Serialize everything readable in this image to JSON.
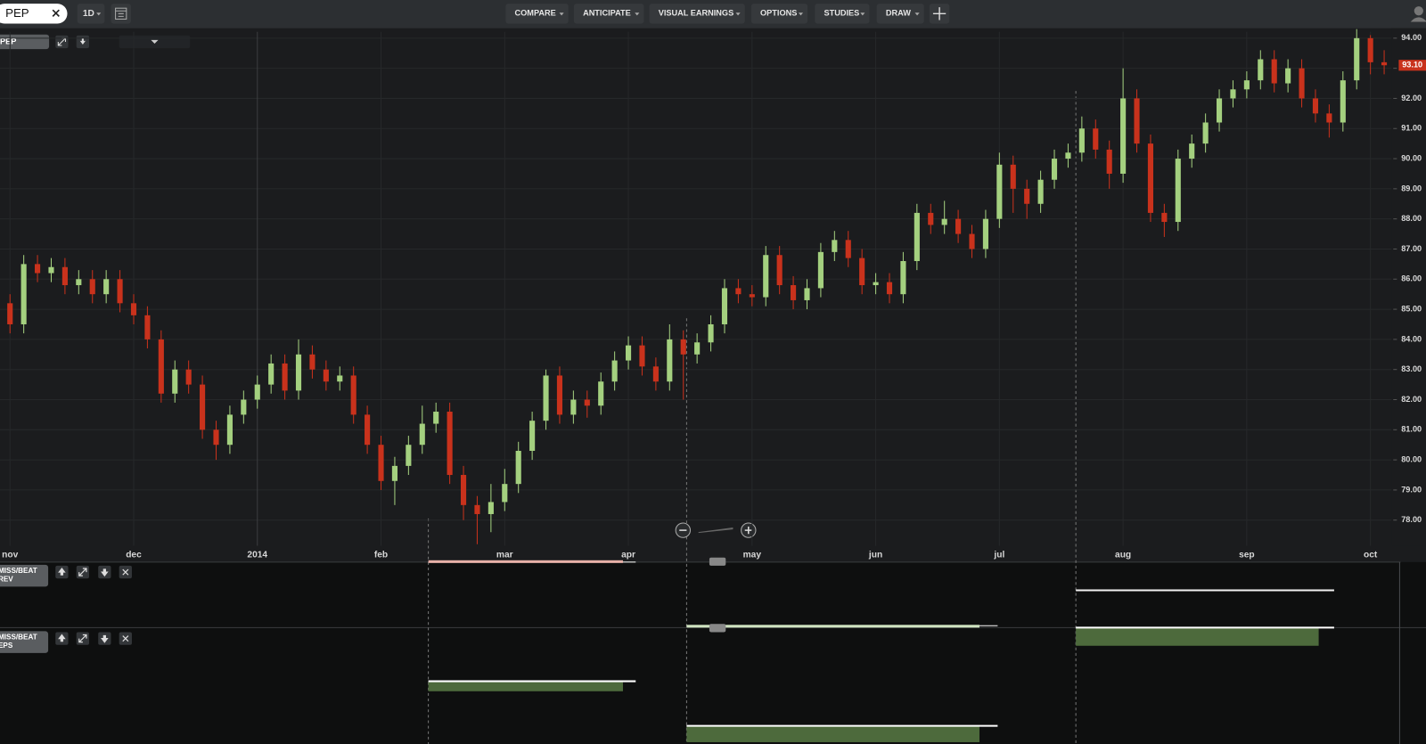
{
  "toolbar": {
    "symbol": "PEP",
    "interval": "1D",
    "menus": [
      "COMPARE",
      "ANTICIPATE",
      "VISUAL EARNINGS",
      "OPTIONS",
      "STUDIES",
      "DRAW"
    ]
  },
  "chart_data": {
    "type": "candlestick",
    "title": "PEP",
    "categories": [
      "nov",
      null,
      null,
      null,
      null,
      null,
      null,
      null,
      null,
      "dec",
      null,
      null,
      null,
      null,
      null,
      null,
      null,
      null,
      "2014",
      null,
      null,
      null,
      null,
      null,
      null,
      null,
      null,
      "feb",
      null,
      null,
      null,
      null,
      null,
      null,
      null,
      null,
      "mar",
      null,
      null,
      null,
      null,
      null,
      null,
      null,
      null,
      "apr",
      null,
      null,
      null,
      null,
      null,
      null,
      null,
      null,
      "may",
      null,
      null,
      null,
      null,
      null,
      null,
      null,
      null,
      "jun",
      null,
      null,
      null,
      null,
      null,
      null,
      null,
      null,
      "jul",
      null,
      null,
      null,
      null,
      null,
      null,
      null,
      null,
      "aug",
      null,
      null,
      null,
      null,
      null,
      null,
      null,
      null,
      "sep",
      null,
      null,
      null,
      null,
      null,
      null,
      null,
      null,
      "oct",
      null
    ],
    "open": [
      85.2,
      84.5,
      86.5,
      86.2,
      86.4,
      85.8,
      86.0,
      85.5,
      86.0,
      85.2,
      84.8,
      84.0,
      82.2,
      83.0,
      82.5,
      81.0,
      80.5,
      81.5,
      82.0,
      82.5,
      83.2,
      82.3,
      83.5,
      83.0,
      82.6,
      82.8,
      81.5,
      80.5,
      79.3,
      79.8,
      80.5,
      81.2,
      81.6,
      79.5,
      78.5,
      78.2,
      78.6,
      79.2,
      80.3,
      81.3,
      82.8,
      81.5,
      82.0,
      81.8,
      82.6,
      83.3,
      83.8,
      83.1,
      82.6,
      84.0,
      83.5,
      83.9,
      84.5,
      85.7,
      85.5,
      85.4,
      86.8,
      85.8,
      85.3,
      85.7,
      86.9,
      87.3,
      86.7,
      85.8,
      85.9,
      85.5,
      86.6,
      88.2,
      87.8,
      88.0,
      87.5,
      87.0,
      88.0,
      89.8,
      89.0,
      88.5,
      89.3,
      90.0,
      90.2,
      91.0,
      90.3,
      89.5,
      92.0,
      90.5,
      88.2,
      87.9,
      90.0,
      90.5,
      91.2,
      92.0,
      92.3,
      92.6,
      93.3,
      92.5,
      93.0,
      92.0,
      91.5,
      91.2,
      92.6,
      94.0,
      93.2
    ],
    "high": [
      85.5,
      86.8,
      86.8,
      86.7,
      86.7,
      86.3,
      86.3,
      86.3,
      86.3,
      85.5,
      85.1,
      84.3,
      83.3,
      83.3,
      82.8,
      81.3,
      81.8,
      82.3,
      82.8,
      83.5,
      83.5,
      84.0,
      83.8,
      83.3,
      83.1,
      83.1,
      81.8,
      80.8,
      80.1,
      80.8,
      81.8,
      81.9,
      81.9,
      79.8,
      78.8,
      79.2,
      79.7,
      80.6,
      81.6,
      83.0,
      83.1,
      82.3,
      82.3,
      82.9,
      83.6,
      84.1,
      84.1,
      83.4,
      84.5,
      84.3,
      84.2,
      84.8,
      86.0,
      86.0,
      85.8,
      87.1,
      87.1,
      86.1,
      86.0,
      87.2,
      87.6,
      87.6,
      87.0,
      86.2,
      86.2,
      86.9,
      88.5,
      88.5,
      88.6,
      88.3,
      87.8,
      88.3,
      90.2,
      90.1,
      89.3,
      89.6,
      90.3,
      90.5,
      91.4,
      91.3,
      90.6,
      93.0,
      92.3,
      90.8,
      88.5,
      90.3,
      90.8,
      91.5,
      92.3,
      92.6,
      92.9,
      93.6,
      93.6,
      93.3,
      93.3,
      92.3,
      91.8,
      92.9,
      94.3,
      94.1,
      93.6
    ],
    "low": [
      84.2,
      84.2,
      85.9,
      85.9,
      85.5,
      85.5,
      85.2,
      85.2,
      84.9,
      84.5,
      83.7,
      81.9,
      81.9,
      82.2,
      80.7,
      80.0,
      80.2,
      81.2,
      81.7,
      82.2,
      82.0,
      82.0,
      82.7,
      82.3,
      82.3,
      81.2,
      80.2,
      79.0,
      78.5,
      79.5,
      80.2,
      80.9,
      79.2,
      78.0,
      77.2,
      77.6,
      78.3,
      78.9,
      80.0,
      81.0,
      81.2,
      81.2,
      81.4,
      81.5,
      82.3,
      83.0,
      82.8,
      82.3,
      82.3,
      82.0,
      83.2,
      83.6,
      84.2,
      85.2,
      85.1,
      85.1,
      85.5,
      85.0,
      85.0,
      85.4,
      86.6,
      86.4,
      85.5,
      85.5,
      85.2,
      85.2,
      86.3,
      87.5,
      87.5,
      87.2,
      86.7,
      86.7,
      87.7,
      88.2,
      88.0,
      88.2,
      89.0,
      89.7,
      89.9,
      90.0,
      89.0,
      89.2,
      90.2,
      87.9,
      87.4,
      87.6,
      89.7,
      90.2,
      90.9,
      91.7,
      92.0,
      92.3,
      92.2,
      92.2,
      91.7,
      91.2,
      90.7,
      90.9,
      92.3,
      92.8,
      92.8
    ],
    "close": [
      84.5,
      86.5,
      86.2,
      86.4,
      85.8,
      86.0,
      85.5,
      86.0,
      85.2,
      84.8,
      84.0,
      82.2,
      83.0,
      82.5,
      81.0,
      80.5,
      81.5,
      82.0,
      82.5,
      83.2,
      82.3,
      83.5,
      83.0,
      82.6,
      82.8,
      81.5,
      80.5,
      79.3,
      79.8,
      80.5,
      81.2,
      81.6,
      79.5,
      78.5,
      78.2,
      78.6,
      79.2,
      80.3,
      81.3,
      82.8,
      81.5,
      82.0,
      81.8,
      82.6,
      83.3,
      83.8,
      83.1,
      82.6,
      84.0,
      83.5,
      83.9,
      84.5,
      85.7,
      85.5,
      85.4,
      86.8,
      85.8,
      85.3,
      85.7,
      86.9,
      87.3,
      86.7,
      85.8,
      85.9,
      85.5,
      86.6,
      88.2,
      87.8,
      88.0,
      87.5,
      87.0,
      88.0,
      89.8,
      89.0,
      88.5,
      89.3,
      90.0,
      90.2,
      91.0,
      90.3,
      89.5,
      92.0,
      90.5,
      88.2,
      87.9,
      90.0,
      90.5,
      91.2,
      92.0,
      92.3,
      92.6,
      93.3,
      92.5,
      93.0,
      92.0,
      91.5,
      91.2,
      92.6,
      94.0,
      93.2,
      93.1
    ],
    "up_color": "#a4d07f",
    "down_color": "#c9321c",
    "ylim": [
      77.15,
      94.21
    ],
    "yticks": [
      {
        "value": 78,
        "label": "78.00"
      },
      {
        "value": 79,
        "label": "79.00"
      },
      {
        "value": 80,
        "label": "80.00"
      },
      {
        "value": 81,
        "label": "81.00"
      },
      {
        "value": 82,
        "label": "82.00"
      },
      {
        "value": 83,
        "label": "83.00"
      },
      {
        "value": 84,
        "label": "84.00"
      },
      {
        "value": 85,
        "label": "85.00"
      },
      {
        "value": 86,
        "label": "86.00"
      },
      {
        "value": 87,
        "label": "87.00"
      },
      {
        "value": 88,
        "label": "88.00"
      },
      {
        "value": 89,
        "label": "89.00"
      },
      {
        "value": 90,
        "label": "90.00"
      },
      {
        "value": 91,
        "label": "91.00"
      },
      {
        "value": 92,
        "label": "92.00"
      },
      {
        "value": 93,
        "label": "93.00"
      },
      {
        "value": 94,
        "label": "94.00"
      }
    ],
    "last_price": {
      "value": 93.1,
      "label": "93.10"
    },
    "grid": true
  },
  "panels": [
    {
      "lines": [
        "MISS/BEAT",
        "REV"
      ]
    },
    {
      "lines": [
        "MISS/BEAT",
        "EPS"
      ]
    }
  ]
}
